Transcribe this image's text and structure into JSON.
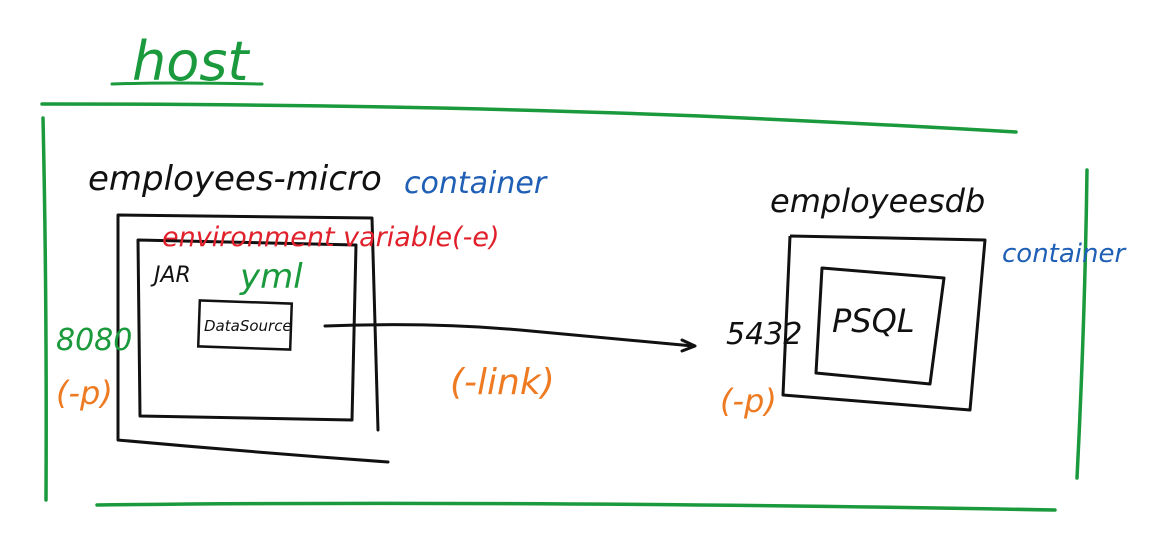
{
  "colors": {
    "green": "#1a9a3c",
    "black": "#111111",
    "blue": "#1f5fb5",
    "red": "#e0202a",
    "orange": "#ee7a22"
  },
  "host": {
    "label": "host"
  },
  "app_container": {
    "name": "employees-micro",
    "kind_label": "container",
    "env_label": "environment variable(-e)",
    "jar_label": "JAR",
    "yml_label": "yml",
    "datasource_label": "DataSource",
    "port_label": "8080",
    "port_flag": "(-p)"
  },
  "db_container": {
    "name": "employeesdb",
    "kind_label": "container",
    "engine_label": "PSQL",
    "port_label": "5432",
    "port_flag": "(-p)"
  },
  "link": {
    "label": "(-link)"
  }
}
